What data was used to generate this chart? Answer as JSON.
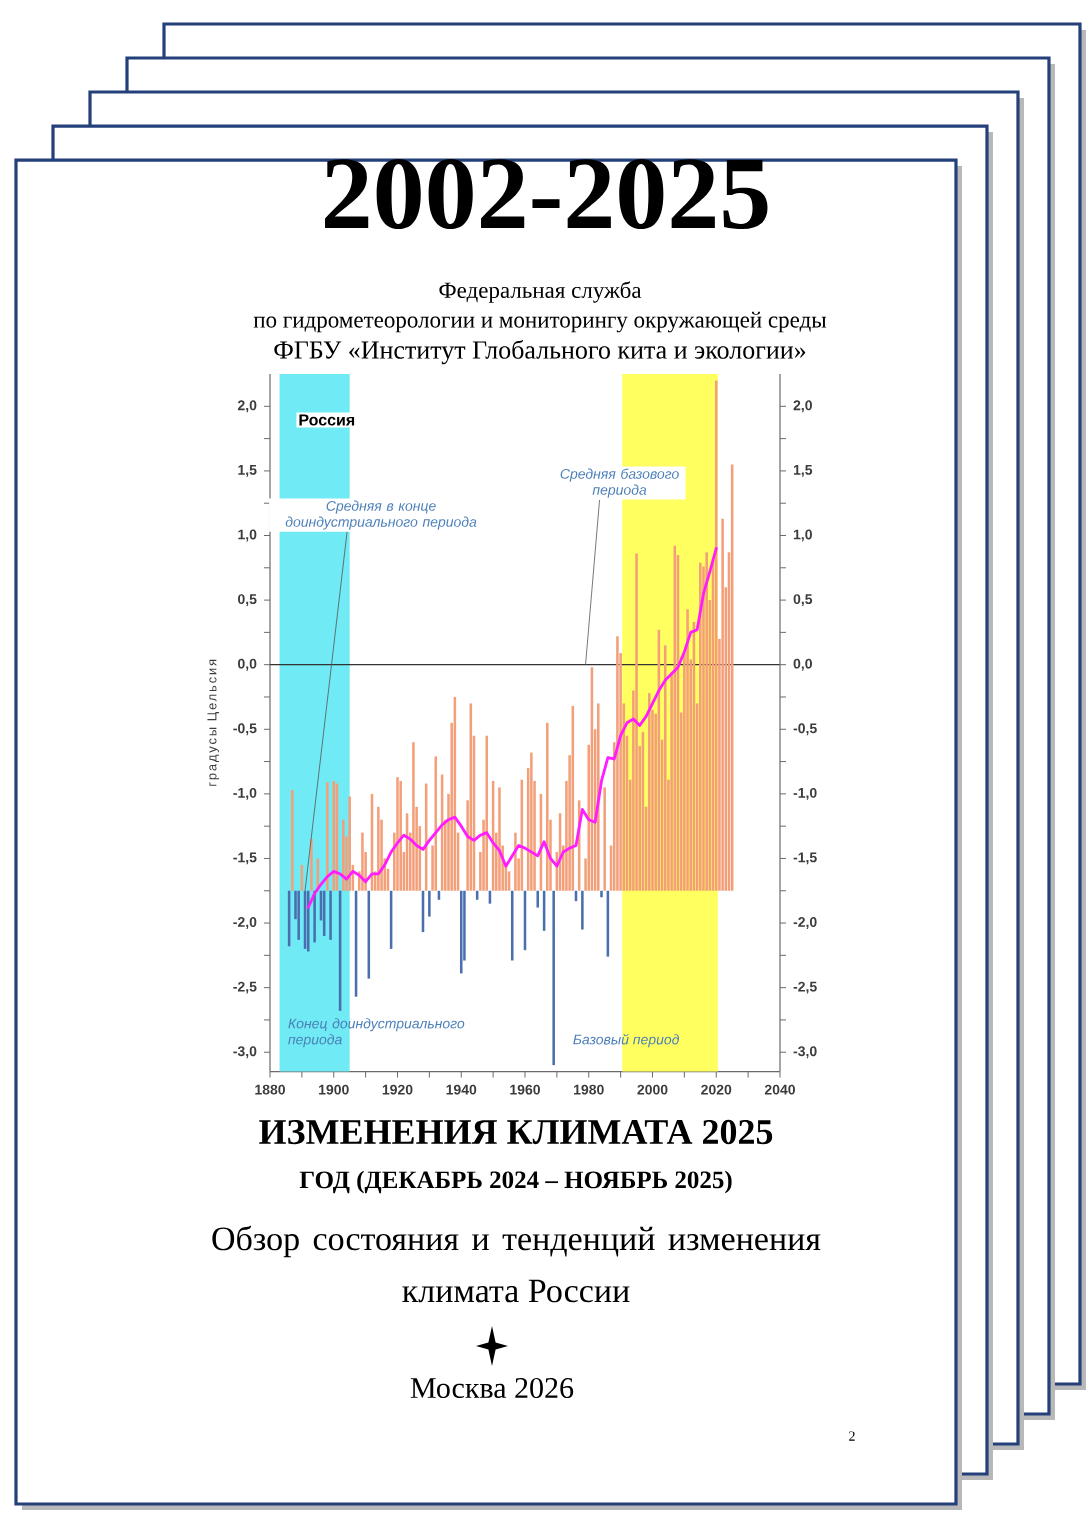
{
  "chart_data": {
    "type": "bar",
    "title": "2002-2025",
    "subtitle": "Федеральная служба",
    "ylabel": "градусы Цельсия",
    "annotations": [
      "по гидрометеорологии и мониторингу окружающей среды",
      "ФГБУ «Институт Глобального кита и экологии»",
      "Россия",
      {
        "text": "Средняя в конце доиндустриального периода",
        "x": 1891,
        "y": -1.75
      },
      {
        "text": "Средняя базового периода",
        "x": 1979,
        "y": 0
      },
      "ИЗМЕНЕНИЯ КЛИМАТА 2025",
      "ГОД (ДЕКАБРЬ 2024 – НОЯБРЬ 2025)",
      "Обзор состояния и тенденций изменения климата России",
      "Москва 2026",
      "2"
    ],
    "xlim": [
      1880,
      2040
    ],
    "xticks": [
      1880,
      {
        "value": 1890,
        "label": null
      },
      1900,
      {
        "value": 1910,
        "label": null
      },
      1920,
      {
        "value": 1930,
        "label": null
      },
      1940,
      {
        "value": 1950,
        "label": null
      },
      1960,
      {
        "value": 1970,
        "label": null
      },
      1980,
      {
        "value": 1990,
        "label": null
      },
      2000,
      {
        "value": 2010,
        "label": null
      },
      2020,
      {
        "value": 2030,
        "label": null
      },
      2040
    ],
    "ylim": [
      -3.15,
      2.25
    ],
    "yticks": [
      {
        "value": -3,
        "label": "-3,0"
      },
      {
        "value": -2.75,
        "label": null
      },
      {
        "value": -2.5,
        "label": "-2,5"
      },
      {
        "value": -2.25,
        "label": null
      },
      {
        "value": -2,
        "label": "-2,0"
      },
      {
        "value": -1.75,
        "label": null
      },
      {
        "value": -1.5,
        "label": "-1,5"
      },
      {
        "value": -1.25,
        "label": null
      },
      {
        "value": -1,
        "label": "-1,0"
      },
      {
        "value": -0.75,
        "label": null
      },
      {
        "value": -0.5,
        "label": "-0,5"
      },
      {
        "value": -0.25,
        "label": null
      },
      {
        "value": 0,
        "label": "0,0"
      },
      {
        "value": 0.25,
        "label": null
      },
      {
        "value": 0.5,
        "label": "0,5"
      },
      {
        "value": 0.75,
        "label": null
      },
      {
        "value": 1,
        "label": "1,0"
      },
      {
        "value": 1.25,
        "label": null
      },
      {
        "value": 1.5,
        "label": "1,5"
      },
      {
        "value": 1.75,
        "label": null
      },
      {
        "value": 2,
        "label": "2,0"
      }
    ],
    "y2lim": [
      -3.15,
      2.25
    ],
    "y2ticks": [
      {
        "value": -3,
        "label": "-3,0"
      },
      {
        "value": -2.75,
        "label": null
      },
      {
        "value": -2.5,
        "label": "-2,5"
      },
      {
        "value": -2.25,
        "label": null
      },
      {
        "value": -2,
        "label": "-2,0"
      },
      {
        "value": -1.75,
        "label": null
      },
      {
        "value": -1.5,
        "label": "-1,5"
      },
      {
        "value": -1.25,
        "label": null
      },
      {
        "value": -1,
        "label": "-1,0"
      },
      {
        "value": -0.75,
        "label": null
      },
      {
        "value": -0.5,
        "label": "-0,5"
      },
      {
        "value": -0.25,
        "label": null
      },
      {
        "value": 0,
        "label": "0,0"
      },
      {
        "value": 0.25,
        "label": null
      },
      {
        "value": 0.5,
        "label": "0,5"
      },
      {
        "value": 0.75,
        "label": null
      },
      {
        "value": 1,
        "label": "1,0"
      },
      {
        "value": 1.25,
        "label": null
      },
      {
        "value": 1.5,
        "label": "1,5"
      },
      {
        "value": 1.75,
        "label": null
      },
      {
        "value": 2,
        "label": "2,0"
      }
    ],
    "series": [
      {
        "color": "#f3a07a",
        "x": [
          1887,
          1890,
          1893,
          1895,
          1898,
          1900,
          1901,
          1903,
          1904,
          1905,
          1906,
          1908,
          1909,
          1910,
          1912,
          1913,
          1914,
          1915,
          1916,
          1917,
          1919,
          1920,
          1921,
          1922,
          1923,
          1924,
          1925,
          1926,
          1927,
          1929,
          1931,
          1932,
          1934,
          1935,
          1936,
          1937,
          1938,
          1939,
          1942,
          1943,
          1944,
          1946,
          1947,
          1948,
          1950,
          1951,
          1952,
          1953,
          1954,
          1955,
          1957,
          1958,
          1959,
          1961,
          1962,
          1963,
          1965,
          1967,
          1968,
          1970,
          1971,
          1972,
          1973,
          1974,
          1975,
          1977,
          1979,
          1980,
          1981,
          1982,
          1983,
          1985,
          1987,
          1988,
          1989,
          1990,
          1991,
          1992,
          1993,
          1994,
          1995,
          1996,
          1997,
          1998,
          1999,
          2000,
          2001,
          2002,
          2003,
          2004,
          2005,
          2006,
          2007,
          2008,
          2009,
          2010,
          2011,
          2012,
          2013,
          2014,
          2015,
          2016,
          2017,
          2018,
          2019,
          2020,
          2021,
          2022,
          2023,
          2024,
          2025
        ],
        "values": [
          0.78,
          0.2,
          0.4,
          0.25,
          0.84,
          0.85,
          0.83,
          0.55,
          0.42,
          0.73,
          0.2,
          0.15,
          0.45,
          0.3,
          0.75,
          0.15,
          0.65,
          0.55,
          0.25,
          0.17,
          0.45,
          0.88,
          0.85,
          0.3,
          0.6,
          0.45,
          1.15,
          0.65,
          0.5,
          0.83,
          0.35,
          1.04,
          0.9,
          0.55,
          0.75,
          1.3,
          1.5,
          0.45,
          0.7,
          1.45,
          1.2,
          0.3,
          0.55,
          1.2,
          0.85,
          0.45,
          0.8,
          0.35,
          0.2,
          0.15,
          0.45,
          0.25,
          0.86,
          0.95,
          1.07,
          0.85,
          0.75,
          1.3,
          0.55,
          0.3,
          0.6,
          0.35,
          0.85,
          1.05,
          1.43,
          0.7,
          0.25,
          1.13,
          1.73,
          1.25,
          1.45,
          0.8,
          0.35,
          1.15,
          1.97,
          1.84,
          1.45,
          1.2,
          0.86,
          1.55,
          2.61,
          1.12,
          1.23,
          0.65,
          1.53,
          1.4,
          1.37,
          2.02,
          1.17,
          1.9,
          0.86,
          1.69,
          2.67,
          2.6,
          1.38,
          1.84,
          2.18,
          1.79,
          2.08,
          1.45,
          2.54,
          2.51,
          2.62,
          2.25,
          2.57,
          3.95,
          1.95,
          2.88,
          2.35,
          2.62,
          3.3
        ],
        "base": [
          -1.75,
          -1.75,
          -1.75,
          -1.75,
          -1.75,
          -1.75,
          -1.75,
          -1.75,
          -1.75,
          -1.75,
          -1.75,
          -1.75,
          -1.75,
          -1.75,
          -1.75,
          -1.75,
          -1.75,
          -1.75,
          -1.75,
          -1.75,
          -1.75,
          -1.75,
          -1.75,
          -1.75,
          -1.75,
          -1.75,
          -1.75,
          -1.75,
          -1.75,
          -1.75,
          -1.75,
          -1.75,
          -1.75,
          -1.75,
          -1.75,
          -1.75,
          -1.75,
          -1.75,
          -1.75,
          -1.75,
          -1.75,
          -1.75,
          -1.75,
          -1.75,
          -1.75,
          -1.75,
          -1.75,
          -1.75,
          -1.75,
          -1.75,
          -1.75,
          -1.75,
          -1.75,
          -1.75,
          -1.75,
          -1.75,
          -1.75,
          -1.75,
          -1.75,
          -1.75,
          -1.75,
          -1.75,
          -1.75,
          -1.75,
          -1.75,
          -1.75,
          -1.75,
          -1.75,
          -1.75,
          -1.75,
          -1.75,
          -1.75,
          -1.75,
          -1.75,
          -1.75,
          -1.75,
          -1.75,
          -1.75,
          -1.75,
          -1.75,
          -1.75,
          -1.75,
          -1.75,
          -1.75,
          -1.75,
          -1.75,
          -1.75,
          -1.75,
          -1.75,
          -1.75,
          -1.75,
          -1.75,
          -1.75,
          -1.75,
          -1.75,
          -1.75,
          -1.75,
          -1.75,
          -1.75,
          -1.75,
          -1.75,
          -1.75,
          -1.75,
          -1.75,
          -1.75,
          -1.75,
          -1.75,
          -1.75,
          -1.75,
          -1.75,
          -1.75
        ]
      },
      {
        "color": "#4a6fae",
        "x": [
          1886,
          1888,
          1889,
          1891,
          1892,
          1894,
          1896,
          1897,
          1899,
          1902,
          1907,
          1911,
          1918,
          1928,
          1930,
          1933,
          1940,
          1941,
          1945,
          1949,
          1956,
          1960,
          1964,
          1966,
          1969,
          1976,
          1978,
          1984,
          1986
        ],
        "values": [
          -0.43,
          -0.22,
          -0.38,
          -0.45,
          -0.47,
          -0.4,
          -0.23,
          -0.35,
          -0.38,
          -0.93,
          -0.82,
          -0.68,
          -0.45,
          -0.32,
          -0.2,
          -0.07,
          -0.64,
          -0.54,
          -0.07,
          -0.1,
          -0.54,
          -0.46,
          -0.13,
          -0.31,
          -1.35,
          -0.08,
          -0.3,
          -0.05,
          -0.51
        ],
        "base": [
          -1.75,
          -1.75,
          -1.75,
          -1.75,
          -1.75,
          -1.75,
          -1.75,
          -1.75,
          -1.75,
          -1.75,
          -1.75,
          -1.75,
          -1.75,
          -1.75,
          -1.75,
          -1.75,
          -1.75,
          -1.75,
          -1.75,
          -1.75,
          -1.75,
          -1.75,
          -1.75,
          -1.75,
          -1.75,
          -1.75,
          -1.75,
          -1.75,
          -1.75
        ]
      },
      {
        "type": "line",
        "color": "#ff1cff",
        "x": [
          1892,
          1894,
          1896,
          1898,
          1900,
          1902,
          1904,
          1906,
          1908,
          1910,
          1912,
          1914,
          1916,
          1918,
          1920,
          1922,
          1924,
          1926,
          1928,
          1930,
          1932,
          1934,
          1936,
          1938,
          1940,
          1942,
          1944,
          1946,
          1948,
          1950,
          1952,
          1954,
          1956,
          1958,
          1960,
          1962,
          1964,
          1966,
          1968,
          1970,
          1972,
          1974,
          1976,
          1978,
          1980,
          1982,
          1984,
          1986,
          1988,
          1990,
          1992,
          1994,
          1996,
          1998,
          2000,
          2002,
          2004,
          2006,
          2008,
          2010,
          2012,
          2014,
          2016,
          2018,
          2020
        ],
        "values": [
          -1.88,
          -1.77,
          -1.7,
          -1.64,
          -1.6,
          -1.62,
          -1.66,
          -1.6,
          -1.63,
          -1.68,
          -1.62,
          -1.62,
          -1.55,
          -1.45,
          -1.38,
          -1.32,
          -1.35,
          -1.4,
          -1.43,
          -1.36,
          -1.3,
          -1.24,
          -1.2,
          -1.18,
          -1.25,
          -1.33,
          -1.36,
          -1.32,
          -1.3,
          -1.38,
          -1.44,
          -1.56,
          -1.48,
          -1.4,
          -1.42,
          -1.45,
          -1.48,
          -1.37,
          -1.5,
          -1.56,
          -1.45,
          -1.42,
          -1.4,
          -1.12,
          -1.2,
          -1.22,
          -0.9,
          -0.72,
          -0.73,
          -0.55,
          -0.45,
          -0.42,
          -0.47,
          -0.4,
          -0.3,
          -0.2,
          -0.12,
          -0.07,
          -0.02,
          0.1,
          0.25,
          0.27,
          0.55,
          0.72,
          0.9
        ]
      }
    ],
    "bands": [
      {
        "axis": "x",
        "from": 1883,
        "to": 1905,
        "label": "Конец доиндустриального периода",
        "color": "#70eaf4"
      },
      {
        "axis": "x",
        "from": 1990.5,
        "to": 2020.5,
        "label": "Базовый период",
        "color": "#ffff60"
      }
    ],
    "ref_lines": [
      {
        "axis": "y",
        "value": 0,
        "color": "#333333"
      }
    ]
  }
}
